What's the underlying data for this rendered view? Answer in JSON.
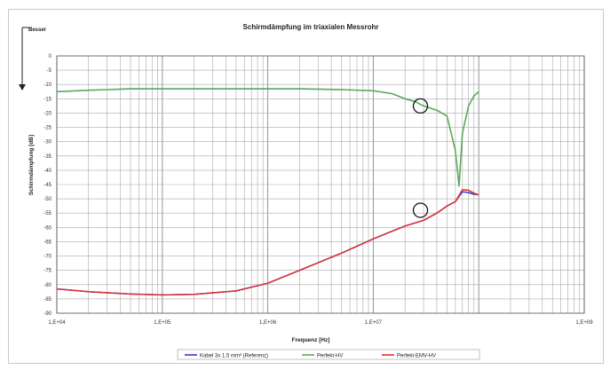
{
  "chart_data": {
    "type": "line",
    "title": "Schirmdämpfung im triaxialen Messrohr",
    "xlabel": "Frequenz [Hz]",
    "ylabel": "Schirmdämpfung [dB]",
    "corner_label": "Besser",
    "x_scale": "log",
    "xlim": [
      10000,
      1000000000
    ],
    "ylim": [
      -90,
      0
    ],
    "x_ticks": [
      {
        "value": 10000,
        "label": "1,E+04"
      },
      {
        "value": 100000,
        "label": "1,E+05"
      },
      {
        "value": 1000000,
        "label": "1,E+06"
      },
      {
        "value": 10000000,
        "label": "1,E+07"
      },
      {
        "value": 1000000000,
        "label": "1,E+09"
      }
    ],
    "y_ticks": [
      0,
      -5,
      -10,
      -15,
      -20,
      -25,
      -30,
      -35,
      -40,
      -45,
      -50,
      -55,
      -60,
      -65,
      -70,
      -75,
      -80,
      -85,
      -90
    ],
    "grid": true,
    "legend_position": "bottom",
    "series": [
      {
        "name": "Kabel 3x 1.5 mm² (Referenz)",
        "color": "#2b3bd6",
        "points": [
          [
            10000,
            -81.5
          ],
          [
            20000,
            -82.5
          ],
          [
            50000,
            -83.3
          ],
          [
            100000,
            -83.6
          ],
          [
            200000,
            -83.4
          ],
          [
            500000,
            -82.2
          ],
          [
            1000000,
            -79.5
          ],
          [
            2000000,
            -75
          ],
          [
            5000000,
            -69
          ],
          [
            10000000,
            -64
          ],
          [
            20000000,
            -59.5
          ],
          [
            30000000,
            -57.5
          ],
          [
            40000000,
            -55
          ],
          [
            50000000,
            -52.5
          ],
          [
            60000000,
            -51
          ],
          [
            70000000,
            -47.5
          ],
          [
            80000000,
            -47.8
          ],
          [
            90000000,
            -48.4
          ],
          [
            100000000,
            -48.5
          ]
        ]
      },
      {
        "name": "Perfekt-HV",
        "color": "#5aa85a",
        "points": [
          [
            10000,
            -12.5
          ],
          [
            20000,
            -12
          ],
          [
            50000,
            -11.5
          ],
          [
            100000,
            -11.5
          ],
          [
            200000,
            -11.5
          ],
          [
            500000,
            -11.5
          ],
          [
            1000000,
            -11.5
          ],
          [
            2000000,
            -11.5
          ],
          [
            5000000,
            -11.8
          ],
          [
            10000000,
            -12.2
          ],
          [
            15000000,
            -13.2
          ],
          [
            20000000,
            -15
          ],
          [
            25000000,
            -16
          ],
          [
            30000000,
            -17.5
          ],
          [
            40000000,
            -19
          ],
          [
            50000000,
            -21
          ],
          [
            60000000,
            -33
          ],
          [
            65000000,
            -45.5
          ],
          [
            70000000,
            -27
          ],
          [
            80000000,
            -17.5
          ],
          [
            90000000,
            -14
          ],
          [
            100000000,
            -12.5
          ]
        ]
      },
      {
        "name": "Perfekt-EMV-HV",
        "color": "#e03030",
        "points": [
          [
            10000,
            -81.5
          ],
          [
            20000,
            -82.5
          ],
          [
            50000,
            -83.3
          ],
          [
            100000,
            -83.6
          ],
          [
            200000,
            -83.4
          ],
          [
            500000,
            -82.2
          ],
          [
            1000000,
            -79.5
          ],
          [
            2000000,
            -75
          ],
          [
            5000000,
            -69
          ],
          [
            10000000,
            -64
          ],
          [
            20000000,
            -59.5
          ],
          [
            30000000,
            -57.5
          ],
          [
            40000000,
            -55
          ],
          [
            50000000,
            -52.5
          ],
          [
            60000000,
            -51
          ],
          [
            70000000,
            -46.8
          ],
          [
            80000000,
            -47
          ],
          [
            90000000,
            -48
          ],
          [
            100000000,
            -48.6
          ]
        ]
      }
    ],
    "annotations": [
      {
        "type": "circle",
        "x": 28000000,
        "y": -17.5
      },
      {
        "type": "circle",
        "x": 28000000,
        "y": -54
      }
    ]
  }
}
